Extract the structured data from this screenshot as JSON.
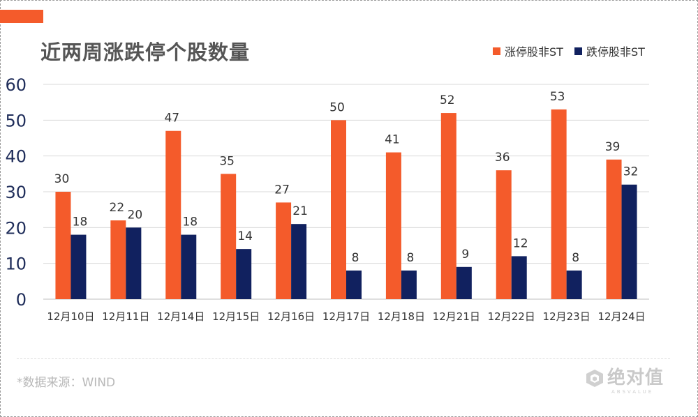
{
  "title": "近两周涨跌停个股数量",
  "source": "*数据来源：WIND",
  "logo": {
    "text": "绝对值",
    "subtext": "ABSVALUE",
    "icon": "cube-logo-icon"
  },
  "colors": {
    "accent": "#f45b2b",
    "series1": "#f45b2b",
    "series2": "#11215f",
    "axis": "#1f2d5a",
    "grid": "#d9d9d9"
  },
  "chart_data": {
    "type": "bar",
    "title": "近两周涨跌停个股数量",
    "categories": [
      "12月10日",
      "12月11日",
      "12月14日",
      "12月15日",
      "12月16日",
      "12月17日",
      "12月18日",
      "12月21日",
      "12月22日",
      "12月23日",
      "12月24日"
    ],
    "series": [
      {
        "name": "涨停股非ST",
        "values": [
          30,
          22,
          47,
          35,
          27,
          50,
          41,
          52,
          36,
          53,
          39
        ],
        "color": "#f45b2b"
      },
      {
        "name": "跌停股非ST",
        "values": [
          18,
          20,
          18,
          14,
          21,
          8,
          8,
          9,
          12,
          8,
          32
        ],
        "color": "#11215f"
      }
    ],
    "ylim": [
      0,
      60
    ],
    "yticks": [
      0,
      10,
      20,
      30,
      40,
      50,
      60
    ],
    "xlabel": "",
    "ylabel": "",
    "grid": true,
    "legend": "top-right",
    "data_labels": true
  }
}
